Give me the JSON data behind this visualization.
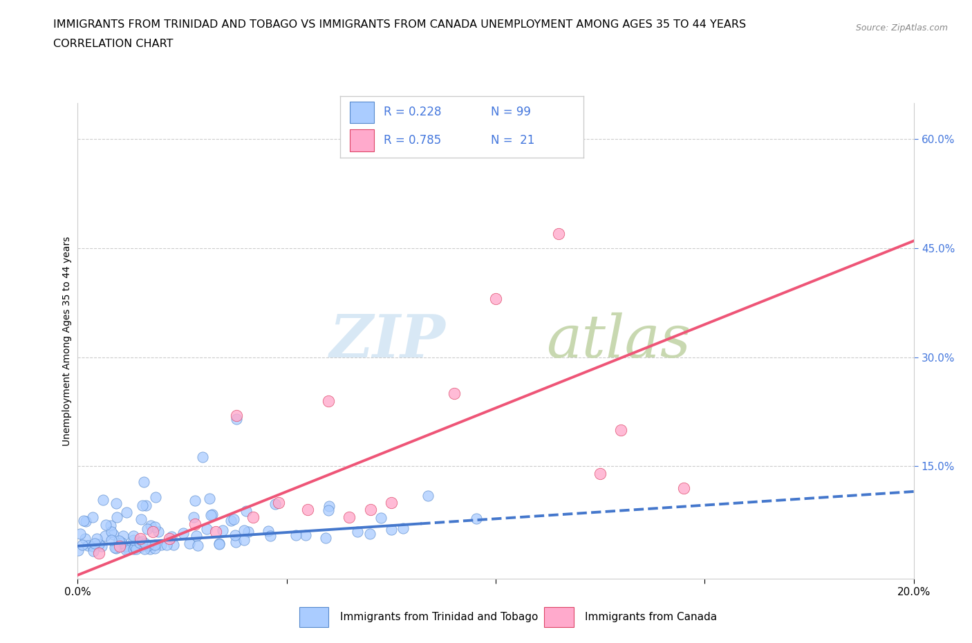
{
  "title_line1": "IMMIGRANTS FROM TRINIDAD AND TOBAGO VS IMMIGRANTS FROM CANADA UNEMPLOYMENT AMONG AGES 35 TO 44 YEARS",
  "title_line2": "CORRELATION CHART",
  "source": "Source: ZipAtlas.com",
  "ylabel": "Unemployment Among Ages 35 to 44 years",
  "watermark_zip": "ZIP",
  "watermark_atlas": "atlas",
  "legend_r1": "R = 0.228",
  "legend_n1": "N = 99",
  "legend_r2": "R = 0.785",
  "legend_n2": "N =  21",
  "series1_label": "Immigrants from Trinidad and Tobago",
  "series2_label": "Immigrants from Canada",
  "color1": "#aaccff",
  "color2": "#ffaacc",
  "edge1": "#5588cc",
  "edge2": "#dd4466",
  "trendline1_color": "#4477cc",
  "trendline2_color": "#ee5577",
  "xmin": 0.0,
  "xmax": 0.2,
  "ymin": -0.005,
  "ymax": 0.65,
  "right_yticks": [
    0.15,
    0.3,
    0.45,
    0.6
  ],
  "right_yticklabels": [
    "15.0%",
    "30.0%",
    "45.0%",
    "60.0%"
  ],
  "trendline1_x0": 0.0,
  "trendline1_x1": 0.2,
  "trendline1_y0": 0.04,
  "trendline1_y1": 0.115,
  "trendline2_x0": 0.0,
  "trendline2_x1": 0.2,
  "trendline2_y0": 0.0,
  "trendline2_y1": 0.46,
  "background_color": "#ffffff",
  "grid_color": "#cccccc",
  "title_fontsize": 11.5,
  "label_fontsize": 10,
  "tick_fontsize": 11,
  "legend_fontsize": 12
}
